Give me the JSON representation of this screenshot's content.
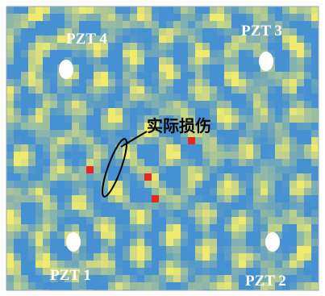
{
  "labels": {
    "sensor_top_left": "PZT 4",
    "sensor_top_right": "PZT 3",
    "sensor_bottom_left": "PZT 1",
    "sensor_bottom_right": "PZT 2",
    "damage": "实际损伤"
  }
}
